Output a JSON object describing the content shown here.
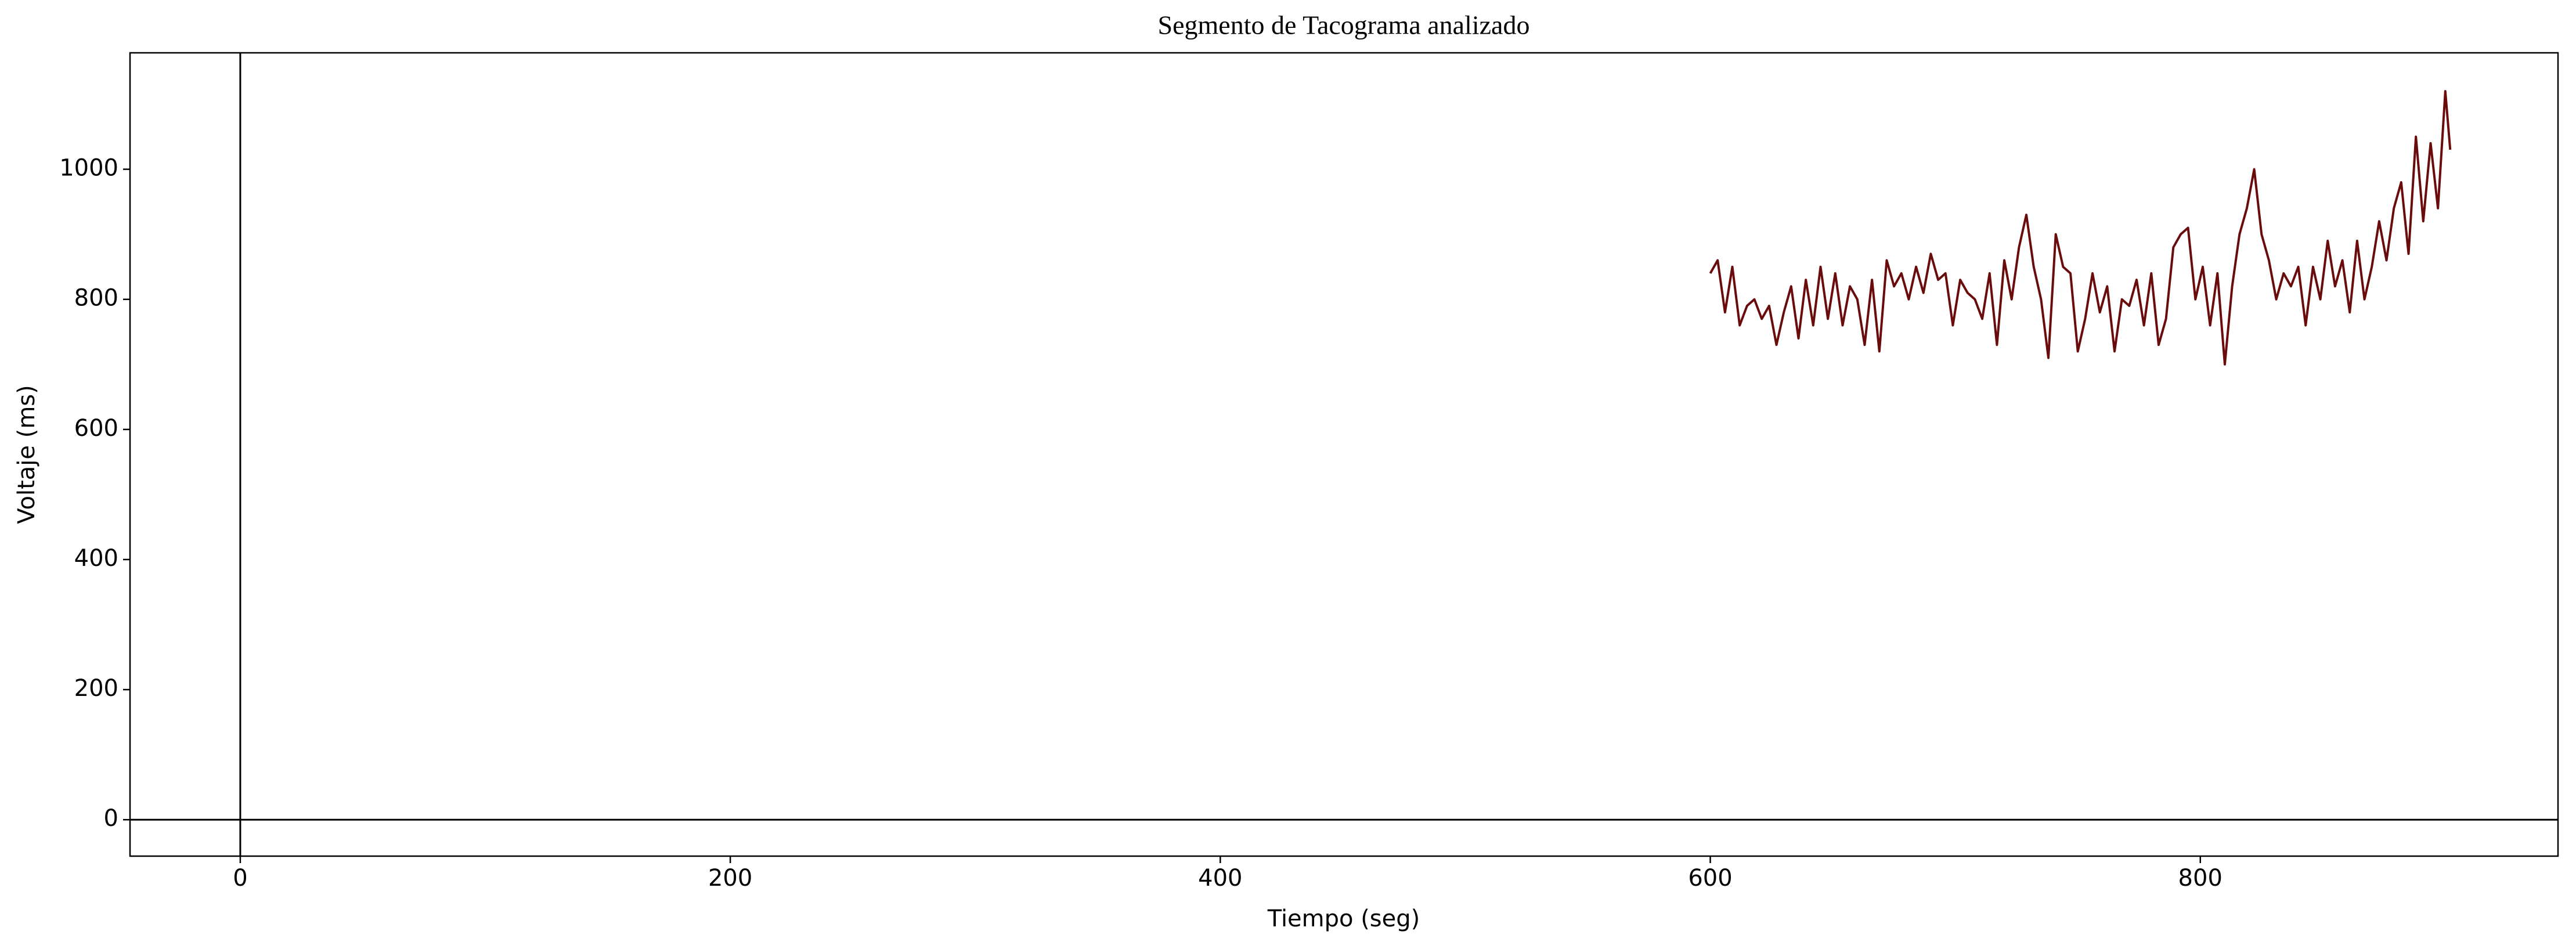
{
  "chart_data": {
    "type": "line",
    "title": "Segmento de Tacograma analizado",
    "x_label": "Tiempo (seg)",
    "y_label": "Voltaje (ms)",
    "x": [
      600,
      603,
      606,
      609,
      612,
      615,
      618,
      621,
      624,
      627,
      630,
      633,
      636,
      639,
      642,
      645,
      648,
      651,
      654,
      657,
      660,
      663,
      666,
      669,
      672,
      675,
      678,
      681,
      684,
      687,
      690,
      693,
      696,
      699,
      702,
      705,
      708,
      711,
      714,
      717,
      720,
      723,
      726,
      729,
      732,
      735,
      738,
      741,
      744,
      747,
      750,
      753,
      756,
      759,
      762,
      765,
      768,
      771,
      774,
      777,
      780,
      783,
      786,
      789,
      792,
      795,
      798,
      801,
      804,
      807,
      810,
      813,
      816,
      819,
      822,
      825,
      828,
      831,
      834,
      837,
      840,
      843,
      846,
      849,
      852,
      855,
      858,
      861,
      864,
      867,
      870,
      873,
      876,
      879,
      882,
      885,
      888,
      891,
      894,
      897,
      900,
      902
    ],
    "series": [
      {
        "color": "#6b0c0c",
        "values": [
          840,
          860,
          780,
          850,
          760,
          790,
          800,
          770,
          790,
          730,
          780,
          820,
          740,
          830,
          760,
          850,
          770,
          840,
          760,
          820,
          800,
          730,
          830,
          720,
          860,
          820,
          840,
          800,
          850,
          810,
          870,
          830,
          840,
          760,
          830,
          810,
          800,
          770,
          840,
          730,
          860,
          800,
          880,
          930,
          850,
          800,
          710,
          900,
          850,
          840,
          720,
          770,
          840,
          780,
          820,
          720,
          800,
          790,
          830,
          760,
          840,
          730,
          770,
          880,
          900,
          910,
          800,
          850,
          760,
          840,
          700,
          820,
          900,
          940,
          1000,
          900,
          860,
          800,
          840,
          820,
          850,
          760,
          850,
          800,
          890,
          820,
          860,
          780,
          890,
          800,
          850,
          920,
          860,
          940,
          980,
          870,
          1050,
          920,
          1040,
          940,
          1120,
          1030
        ]
      }
    ],
    "xlim": [
      -45,
      946
    ],
    "ylim": [
      -56,
      1179
    ],
    "xticks": [
      0,
      200,
      400,
      600,
      800
    ],
    "yticks": [
      0,
      200,
      400,
      600,
      800,
      1000
    ],
    "zero_lines": true,
    "grid": false
  }
}
